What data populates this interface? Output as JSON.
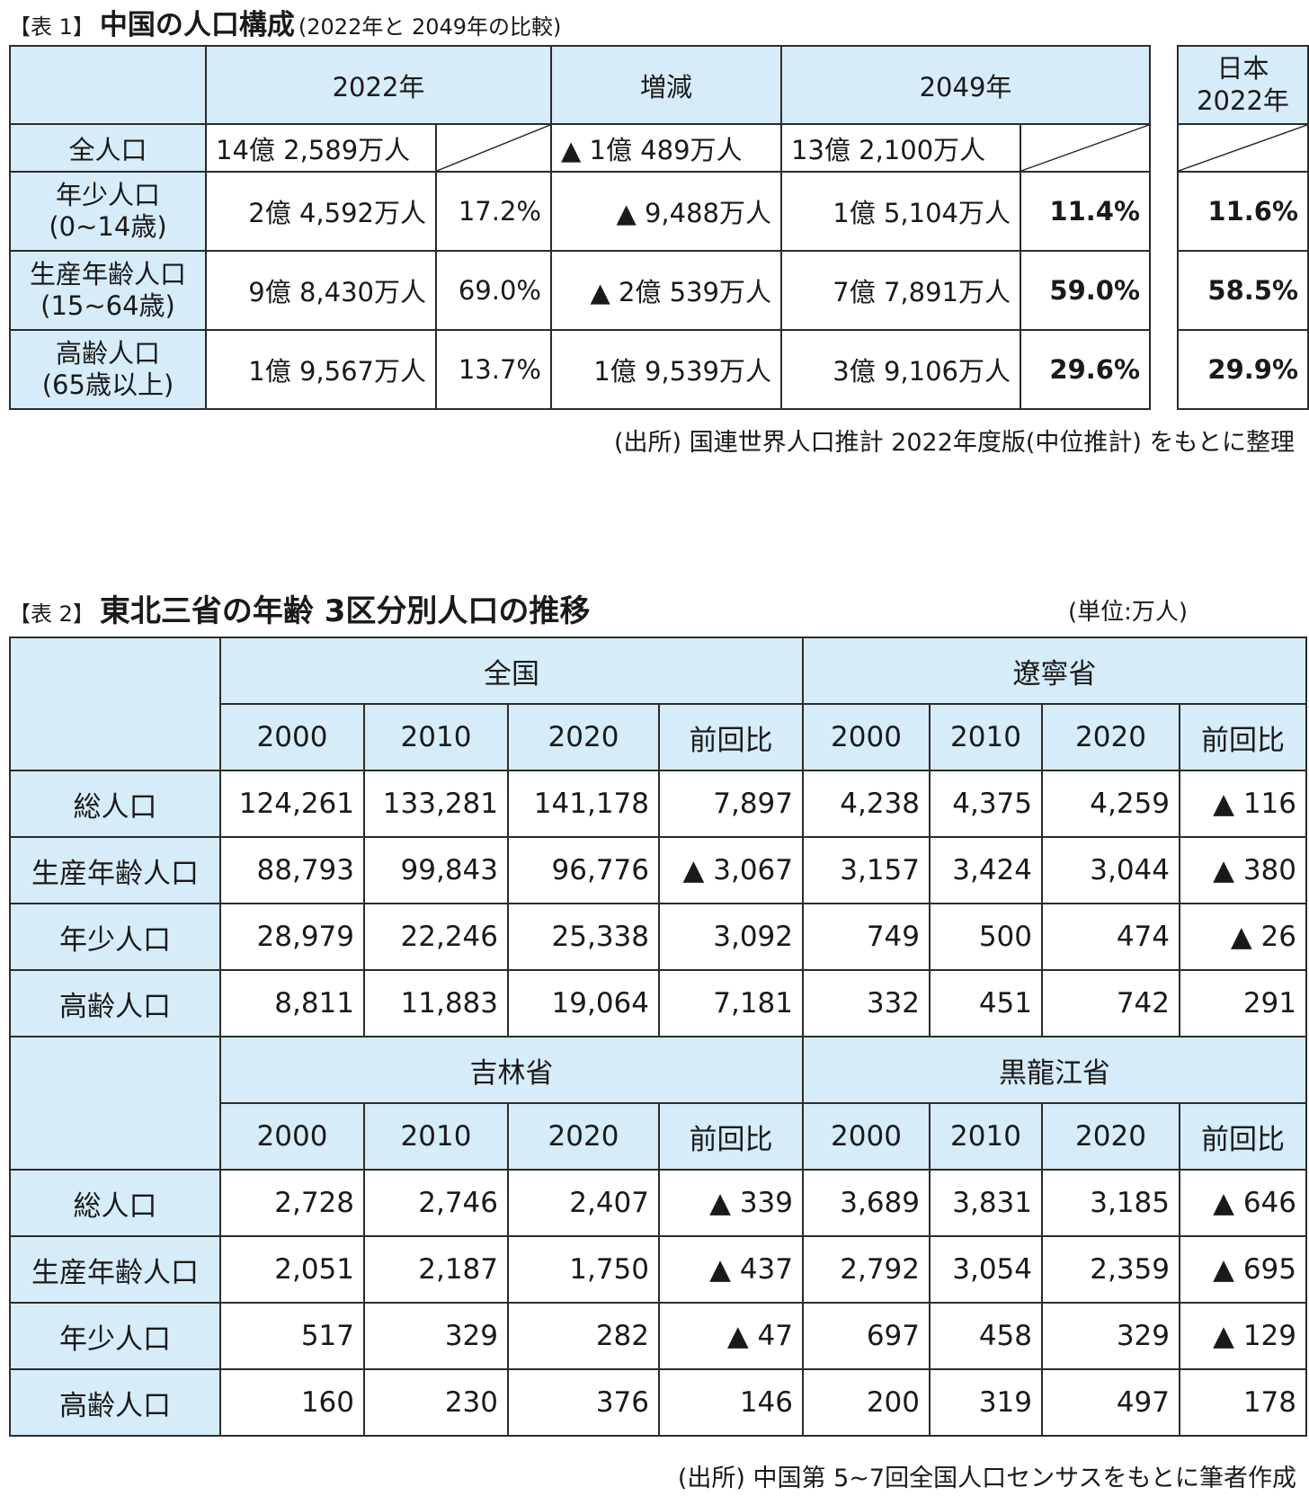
{
  "table1": {
    "label": "【表 1】",
    "title": "中国の人口構成",
    "subtitle": "(2022年と 2049年の比較)",
    "headers": {
      "y2022": "2022年",
      "change": "増減",
      "y2049": "2049年",
      "japan": "日本\n2022年"
    },
    "total": {
      "label": "全人口",
      "v2022": "14億 2,589万人",
      "change": "▲ 1億 489万人",
      "v2049": "13億 2,100万人"
    },
    "rows": [
      {
        "label": "年少人口\n(0~14歳)",
        "v2022": "2億 4,592万人",
        "p2022": "17.2%",
        "change": "▲ 9,488万人",
        "v2049": "1億 5,104万人",
        "p2049": "11.4%",
        "japan": "11.6%"
      },
      {
        "label": "生産年齢人口\n(15~64歳)",
        "v2022": "9億 8,430万人",
        "p2022": "69.0%",
        "change": "▲ 2億 539万人",
        "v2049": "7億 7,891万人",
        "p2049": "59.0%",
        "japan": "58.5%"
      },
      {
        "label": "高齢人口\n(65歳以上)",
        "v2022": "1億 9,567万人",
        "p2022": "13.7%",
        "change": "1億 9,539万人",
        "v2049": "3億 9,106万人",
        "p2049": "29.6%",
        "japan": "29.9%"
      }
    ],
    "source": "(出所) 国連世界人口推計 2022年度版(中位推計) をもとに整理"
  },
  "table2": {
    "label": "【表 2】",
    "title": "東北三省の年齢 3区分別人口の推移",
    "unit": "(単位:万人)",
    "years": [
      "2000",
      "2010",
      "2020",
      "前回比"
    ],
    "row_labels": [
      "総人口",
      "生産年齢人口",
      "年少人口",
      "高齢人口"
    ],
    "blocks": [
      {
        "left": {
          "region": "全国",
          "rows": [
            [
              "124,261",
              "133,281",
              "141,178",
              "7,897"
            ],
            [
              "88,793",
              "99,843",
              "96,776",
              "▲ 3,067"
            ],
            [
              "28,979",
              "22,246",
              "25,338",
              "3,092"
            ],
            [
              "8,811",
              "11,883",
              "19,064",
              "7,181"
            ]
          ]
        },
        "right": {
          "region": "遼寧省",
          "rows": [
            [
              "4,238",
              "4,375",
              "4,259",
              "▲ 116"
            ],
            [
              "3,157",
              "3,424",
              "3,044",
              "▲ 380"
            ],
            [
              "749",
              "500",
              "474",
              "▲ 26"
            ],
            [
              "332",
              "451",
              "742",
              "291"
            ]
          ]
        }
      },
      {
        "left": {
          "region": "吉林省",
          "rows": [
            [
              "2,728",
              "2,746",
              "2,407",
              "▲ 339"
            ],
            [
              "2,051",
              "2,187",
              "1,750",
              "▲ 437"
            ],
            [
              "517",
              "329",
              "282",
              "▲ 47"
            ],
            [
              "160",
              "230",
              "376",
              "146"
            ]
          ]
        },
        "right": {
          "region": "黒龍江省",
          "rows": [
            [
              "3,689",
              "3,831",
              "3,185",
              "▲ 646"
            ],
            [
              "2,792",
              "3,054",
              "2,359",
              "▲ 695"
            ],
            [
              "697",
              "458",
              "329",
              "▲ 129"
            ],
            [
              "200",
              "319",
              "497",
              "178"
            ]
          ]
        }
      }
    ],
    "source": "(出所) 中国第 5~7回全国人口センサスをもとに筆者作成"
  },
  "colors": {
    "header_fill": "#d6ecf8",
    "border": "#2b2b2b"
  }
}
